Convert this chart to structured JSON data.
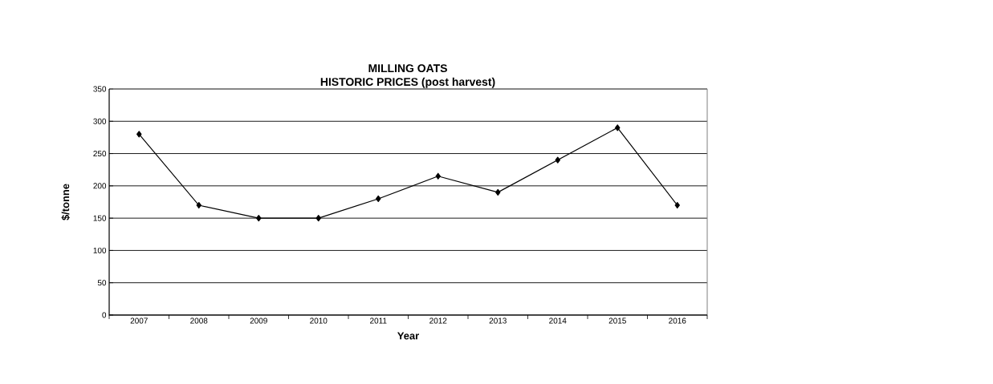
{
  "chart_data": {
    "type": "line",
    "title": "MILLING OATS\nHISTORIC PRICES (post harvest)",
    "xlabel": "Year",
    "ylabel": "$/tonne",
    "categories": [
      "2007",
      "2008",
      "2009",
      "2010",
      "2011",
      "2012",
      "2013",
      "2014",
      "2015",
      "2016"
    ],
    "values": [
      280,
      170,
      150,
      150,
      180,
      215,
      190,
      240,
      290,
      170
    ],
    "color": "#000000",
    "marker": "diamond",
    "grid": "y",
    "ylim": [
      0,
      350
    ],
    "yticks": [
      0,
      50,
      100,
      150,
      200,
      250,
      300,
      350
    ]
  }
}
